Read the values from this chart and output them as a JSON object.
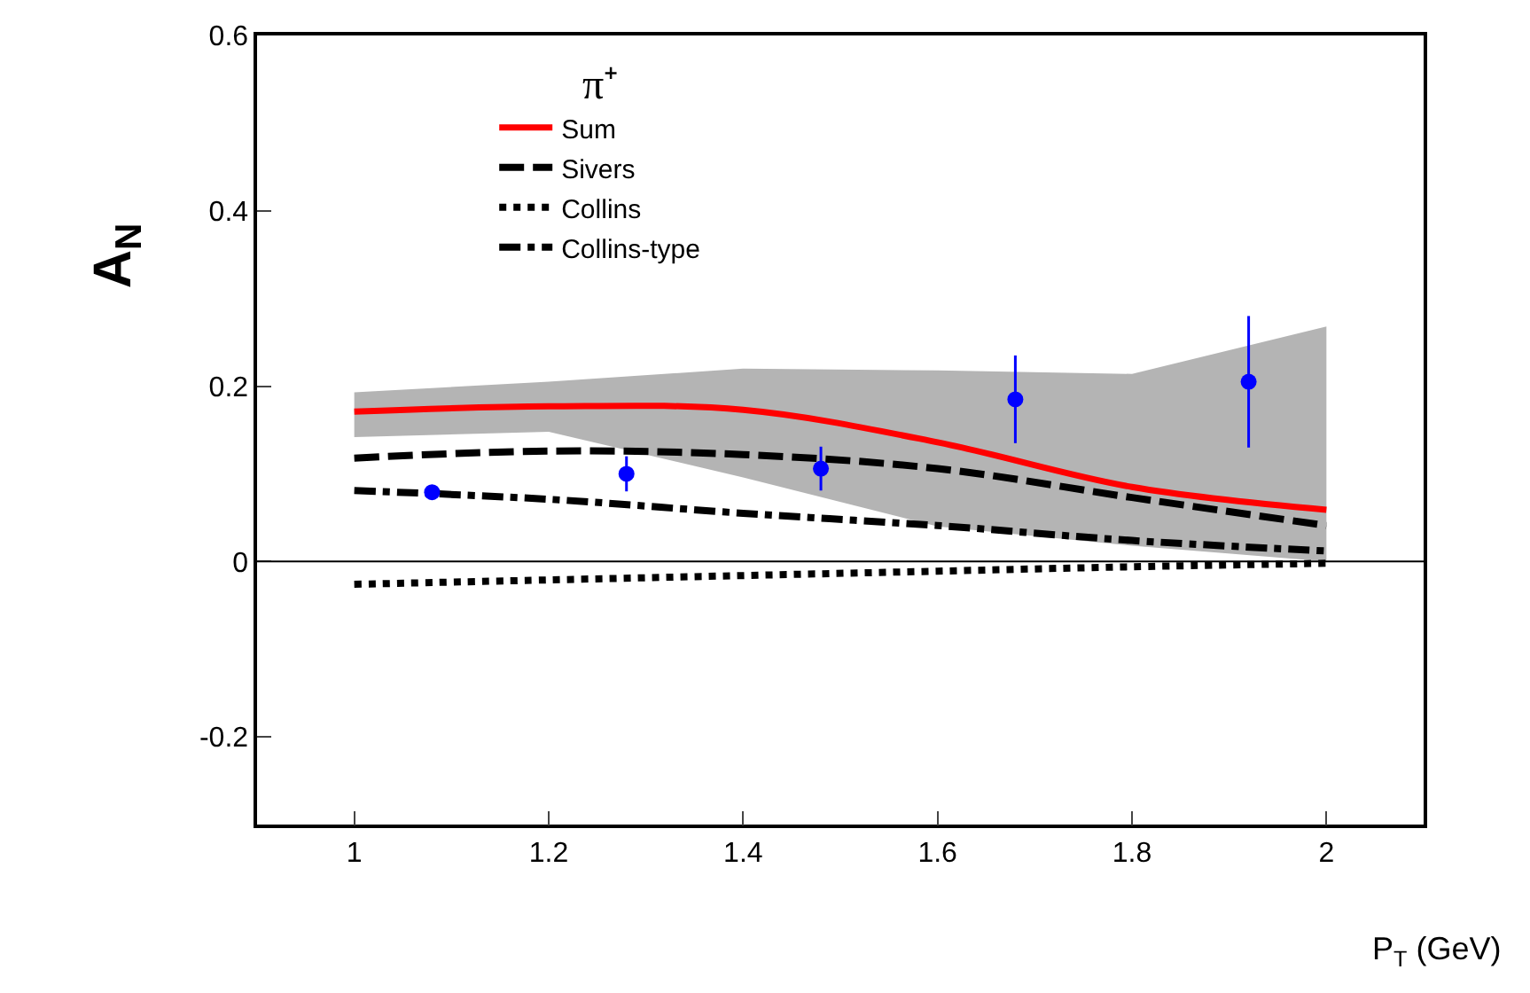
{
  "chart_data": {
    "type": "line",
    "xlabel": "P$_{T}$ (GeV)",
    "ylabel": "A$_{N}$",
    "legend_title": "π⁺",
    "xlim": [
      0.9,
      2.1
    ],
    "ylim": [
      -0.3,
      0.6
    ],
    "xticks": [
      1,
      1.2,
      1.4,
      1.6,
      1.8,
      2
    ],
    "yticks": [
      -0.2,
      0,
      0.2,
      0.4,
      0.6
    ],
    "grid": false,
    "legend": "top left",
    "marker": "none",
    "ref_lines": [
      {
        "axis": "y",
        "value": 0,
        "label": null,
        "color": "#000000"
      }
    ],
    "series": [
      {
        "name": "Sum",
        "color": "#ff0000",
        "line_style": "solid",
        "x": [
          1,
          1.2,
          1.4,
          1.6,
          1.8,
          2
        ],
        "values": [
          0.171,
          0.177,
          0.173,
          0.136,
          0.085,
          0.059
        ],
        "lower": [
          0.142,
          0.148,
          0.096,
          0.04,
          0.018,
          0.0
        ],
        "upper": [
          0.193,
          0.205,
          0.22,
          0.218,
          0.214,
          0.268
        ]
      },
      {
        "name": "Sivers",
        "color": "#000000",
        "line_style": "dashed",
        "x": [
          1,
          1.2,
          1.4,
          1.6,
          1.8,
          2
        ],
        "values": [
          0.118,
          0.126,
          0.122,
          0.106,
          0.073,
          0.041
        ]
      },
      {
        "name": "Collins",
        "color": "#000000",
        "line_style": "dotted",
        "x": [
          1,
          1.2,
          1.4,
          1.6,
          1.8,
          2
        ],
        "values": [
          -0.026,
          -0.021,
          -0.016,
          -0.011,
          -0.006,
          -0.002
        ]
      },
      {
        "name": "Collins-type",
        "color": "#000000",
        "line_style": "dashdot",
        "x": [
          1,
          1.2,
          1.4,
          1.6,
          1.8,
          2
        ],
        "values": [
          0.081,
          0.071,
          0.055,
          0.041,
          0.024,
          0.012
        ]
      },
      {
        "type": "scatter",
        "color": "#0000ff",
        "marker": "circle",
        "x": [
          1.08,
          1.28,
          1.48,
          1.68,
          1.92
        ],
        "values": [
          0.079,
          0.1,
          0.106,
          0.185,
          0.205
        ],
        "errors": [
          0.008,
          0.02,
          0.025,
          0.05,
          0.075
        ]
      }
    ]
  }
}
